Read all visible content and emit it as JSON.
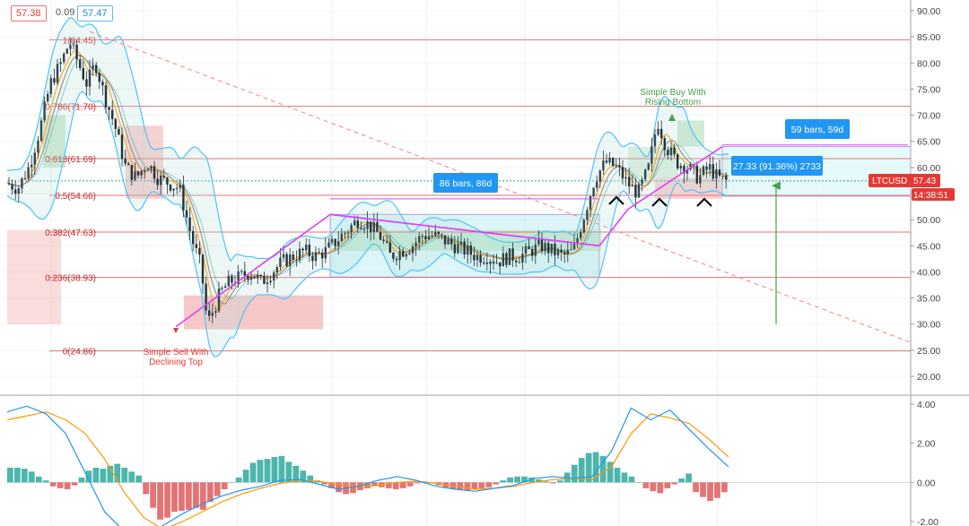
{
  "header": {
    "value_a": "57.38",
    "value_b": "0.09",
    "value_c": "57.47"
  },
  "price_label": {
    "symbol": "LTCUSD",
    "value": "57.43",
    "countdown": "14:38:51",
    "color": "#e53935"
  },
  "annotations": {
    "range_top": "59 bars, 59d",
    "range_mid": "86 bars, 86d",
    "measure": "27.33 (91.36%) 2733",
    "buy_signal": [
      "Simple Buy With",
      "Rising Bottom"
    ],
    "sell_signal": [
      "Simple Sell With",
      "Declining Top"
    ]
  },
  "colors": {
    "up": "#26a69a",
    "down": "#ef5350",
    "fib": "#e57373",
    "trend": "#e040fb",
    "bb": "#4fc3f7",
    "ma_fast": "#f5a623",
    "ma_slow": "#a1887f",
    "macd": "#2196f3",
    "signal": "#ff9800",
    "label_blue": "#2196f3"
  },
  "chart_data": [
    {
      "type": "candlestick",
      "symbol": "LTCUSD",
      "ylim": [
        15,
        92
      ],
      "y_ticks": [
        "90.00",
        "85.00",
        "80.00",
        "75.00",
        "70.00",
        "65.00",
        "60.00",
        "55.00",
        "50.00",
        "45.00",
        "40.00",
        "35.00",
        "30.00",
        "25.00",
        "20.00"
      ],
      "fib_levels": [
        {
          "label": "1(84.45)",
          "value": 84.45
        },
        {
          "label": "0.786(71.70)",
          "value": 71.7
        },
        {
          "label": "0.618(61.69)",
          "value": 61.69
        },
        {
          "label": "0.5(54.66)",
          "value": 54.66
        },
        {
          "label": "0.382(47.63)",
          "value": 47.63
        },
        {
          "label": "0.236(38.93)",
          "value": 38.93
        },
        {
          "label": "0(24.86)",
          "value": 24.86
        }
      ],
      "close_path": [
        [
          0,
          57
        ],
        [
          10,
          56
        ],
        [
          20,
          60
        ],
        [
          30,
          67
        ],
        [
          40,
          76
        ],
        [
          50,
          80
        ],
        [
          58,
          84
        ],
        [
          66,
          80
        ],
        [
          74,
          76
        ],
        [
          82,
          80
        ],
        [
          90,
          74
        ],
        [
          100,
          68
        ],
        [
          110,
          60
        ],
        [
          120,
          58
        ],
        [
          130,
          61
        ],
        [
          140,
          58
        ],
        [
          150,
          57
        ],
        [
          160,
          56
        ],
        [
          172,
          46
        ],
        [
          180,
          41
        ],
        [
          186,
          30
        ],
        [
          192,
          33
        ],
        [
          198,
          36
        ],
        [
          206,
          38
        ],
        [
          216,
          39
        ],
        [
          226,
          40
        ],
        [
          236,
          38
        ],
        [
          246,
          40
        ],
        [
          256,
          42
        ],
        [
          266,
          43
        ],
        [
          276,
          44
        ],
        [
          286,
          43
        ],
        [
          296,
          44
        ],
        [
          306,
          46
        ],
        [
          316,
          48
        ],
        [
          326,
          50
        ],
        [
          336,
          49
        ],
        [
          346,
          47
        ],
        [
          356,
          43
        ],
        [
          366,
          44
        ],
        [
          376,
          45
        ],
        [
          386,
          47
        ],
        [
          396,
          47
        ],
        [
          406,
          46
        ],
        [
          416,
          45
        ],
        [
          426,
          44
        ],
        [
          436,
          43
        ],
        [
          446,
          43
        ],
        [
          456,
          42
        ],
        [
          466,
          43
        ],
        [
          476,
          43
        ],
        [
          486,
          44
        ],
        [
          496,
          45
        ],
        [
          506,
          44
        ],
        [
          516,
          43
        ],
        [
          526,
          44
        ],
        [
          536,
          51
        ],
        [
          546,
          58
        ],
        [
          556,
          61
        ],
        [
          566,
          60
        ],
        [
          576,
          57
        ],
        [
          586,
          55
        ],
        [
          596,
          60
        ],
        [
          604,
          69
        ],
        [
          612,
          64
        ],
        [
          622,
          61
        ],
        [
          632,
          60
        ],
        [
          642,
          58
        ],
        [
          652,
          60
        ],
        [
          660,
          58
        ],
        [
          668,
          57.4
        ]
      ]
    },
    {
      "type": "bar",
      "name": "MACD",
      "ylim": [
        -2.1,
        4.1
      ],
      "y_ticks": [
        "4.00",
        "2.00",
        "0.00",
        "-2.00"
      ],
      "histogram": [
        0.75,
        0.75,
        0.7,
        0.55,
        0.3,
        0.1,
        -0.2,
        -0.3,
        -0.35,
        -0.15,
        0.25,
        0.6,
        0.75,
        0.7,
        0.85,
        0.95,
        0.75,
        0.55,
        0.35,
        -0.6,
        -1.3,
        -1.9,
        -1.8,
        -1.5,
        -1.45,
        -1.4,
        -1.3,
        -1.4,
        -1.0,
        -0.7,
        -0.35,
        0.0,
        0.25,
        0.65,
        1.0,
        1.15,
        1.2,
        1.3,
        1.35,
        1.05,
        0.85,
        0.6,
        0.35,
        0.1,
        -0.1,
        -0.3,
        -0.5,
        -0.6,
        -0.55,
        -0.4,
        -0.3,
        -0.2,
        -0.25,
        -0.3,
        -0.35,
        -0.3,
        -0.2,
        -0.05,
        0.05,
        -0.05,
        -0.15,
        -0.25,
        -0.35,
        -0.4,
        -0.4,
        -0.35,
        -0.3,
        -0.25,
        -0.1,
        0.1,
        0.25,
        0.3,
        0.3,
        0.25,
        0.15,
        0.05,
        -0.05,
        0.1,
        0.5,
        0.9,
        1.25,
        1.5,
        1.55,
        1.35,
        1.05,
        0.75,
        0.5,
        0.3,
        0.0,
        -0.3,
        -0.45,
        -0.55,
        -0.3,
        -0.1,
        0.2,
        0.45,
        -0.5,
        -0.75,
        -0.95,
        -0.8,
        -0.5
      ],
      "macd_line": [
        3.6,
        3.9,
        3.5,
        2.5,
        0.5,
        -1.5,
        -2.5,
        -2.8,
        -2.2,
        -1.6,
        -1.1,
        -0.7,
        -0.4,
        -0.2,
        0.1,
        0.15,
        -0.1,
        -0.35,
        -0.2,
        0.1,
        0.3,
        0.1,
        -0.2,
        -0.35,
        -0.45,
        -0.3,
        -0.15,
        0.2,
        0.3,
        0.2,
        0.3,
        1.6,
        3.8,
        3.2,
        3.7,
        2.7,
        1.7,
        0.8
      ],
      "signal_line": [
        3.2,
        3.4,
        3.6,
        3.2,
        2.5,
        1.2,
        -0.5,
        -1.8,
        -2.4,
        -2.0,
        -1.5,
        -1.0,
        -0.6,
        -0.3,
        -0.05,
        0.1,
        0.05,
        -0.1,
        -0.2,
        -0.15,
        0.0,
        0.05,
        -0.05,
        -0.2,
        -0.35,
        -0.3,
        -0.2,
        0.0,
        0.15,
        0.2,
        0.15,
        0.8,
        2.5,
        3.5,
        3.3,
        3.0,
        2.2,
        1.3
      ]
    }
  ]
}
